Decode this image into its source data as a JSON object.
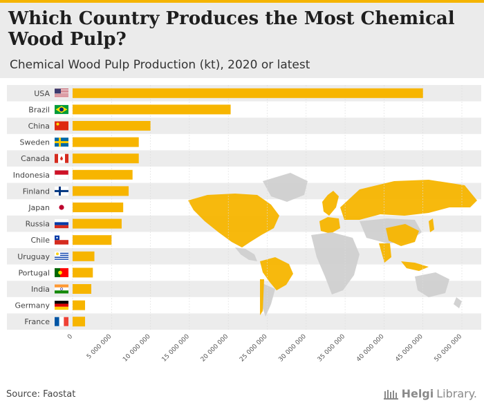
{
  "header": {
    "title": "Which Country Produces the Most Chemical Wood Pulp?",
    "subtitle": "Chemical Wood Pulp Production (kt), 2020 or latest"
  },
  "footer": {
    "source": "Source: Faostat",
    "brand_main": "Helgi",
    "brand_sub": "Library."
  },
  "colors": {
    "bar": "#f7b500",
    "map_highlight": "#f7b500",
    "map_other": "#d0d0d0",
    "row_band": "#ececec"
  },
  "chart_data": {
    "type": "bar",
    "orientation": "horizontal",
    "categories": [
      "USA",
      "Brazil",
      "China",
      "Sweden",
      "Canada",
      "Indonesia",
      "Finland",
      "Japan",
      "Russia",
      "Chile",
      "Uruguay",
      "Portugal",
      "India",
      "Germany",
      "France"
    ],
    "values": [
      45000000,
      20300000,
      10000000,
      8500000,
      8500000,
      7700000,
      7200000,
      6500000,
      6300000,
      5000000,
      2800000,
      2600000,
      2400000,
      1600000,
      1600000
    ],
    "xlim": [
      0,
      50000000
    ],
    "xticks": [
      0,
      5000000,
      10000000,
      15000000,
      20000000,
      25000000,
      30000000,
      35000000,
      40000000,
      45000000,
      50000000
    ],
    "xtick_labels": [
      "0",
      "5 000 000",
      "10 000 000",
      "15 000 000",
      "20 000 000",
      "25 000 000",
      "30 000 000",
      "35 000 000",
      "40 000 000",
      "45 000 000",
      "50 000 000"
    ],
    "grid": true,
    "flags": [
      "usa",
      "brazil",
      "china",
      "sweden",
      "canada",
      "indonesia",
      "finland",
      "japan",
      "russia",
      "chile",
      "uruguay",
      "portugal",
      "india",
      "germany",
      "france"
    ]
  }
}
